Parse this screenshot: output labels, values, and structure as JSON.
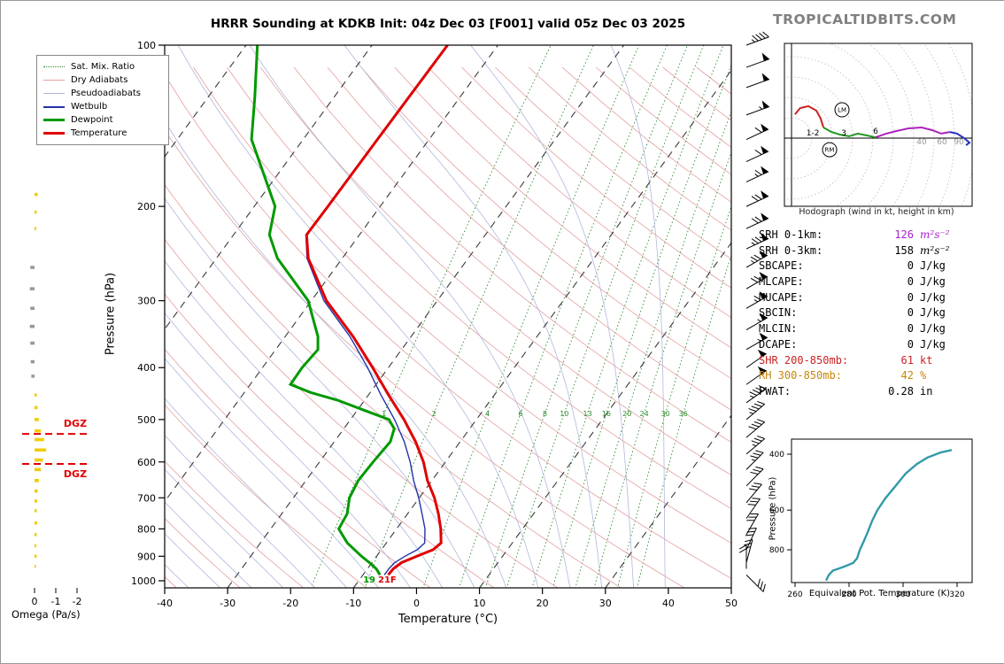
{
  "title": "HRRR Sounding at KDKB Init: 04z Dec 03 [F001] valid 05z Dec 03 2025",
  "branding": "TROPICALTIDBITS.COM",
  "hodograph_caption": "Hodograph (wind in kt, height in km)",
  "legend": {
    "items": [
      {
        "label": "Sat. Mix. Ratio",
        "color": "#2e8b2e",
        "style": "dotted",
        "width": 1
      },
      {
        "label": "Dry Adiabats",
        "color": "#e49f9f",
        "style": "solid",
        "width": 1
      },
      {
        "label": "Pseudoadiabats",
        "color": "#b0b8dc",
        "style": "solid",
        "width": 1
      },
      {
        "label": "Wetbulb",
        "color": "#2233aa",
        "style": "solid",
        "width": 2
      },
      {
        "label": "Dewpoint",
        "color": "#009900",
        "style": "solid",
        "width": 3
      },
      {
        "label": "Temperature",
        "color": "#e00000",
        "style": "solid",
        "width": 3
      }
    ]
  },
  "axes": {
    "pressure_label": "Pressure (hPa)",
    "pressure_ticks": [
      100,
      200,
      300,
      400,
      500,
      600,
      700,
      800,
      900,
      1000
    ],
    "temp_label": "Temperature (°C)",
    "temp_ticks": [
      -40,
      -30,
      -20,
      -10,
      0,
      10,
      20,
      30,
      40,
      50
    ],
    "omega_label": "Omega (Pa/s)",
    "omega_ticks": [
      0,
      -1,
      -2
    ]
  },
  "theta_e_labels": {
    "x": "Equivalent Pot. Temperature (K)",
    "y": "Pressure (hPa)"
  },
  "dgz": {
    "label": "DGZ",
    "top_p": 532,
    "bottom_p": 605
  },
  "surface": {
    "dewpoint_label": "19",
    "temp_label": "21F"
  },
  "stats": {
    "rows": [
      {
        "label": "SRH 0-1km:",
        "value": "126",
        "unit": "m²s⁻²",
        "lc": "#000000",
        "vc": "#aa22cc",
        "uc": "#aa22cc",
        "iu": true
      },
      {
        "label": "SRH 0-3km:",
        "value": "158",
        "unit": "m²s⁻²",
        "lc": "#000000",
        "vc": "#000000",
        "uc": "#000000",
        "iu": true
      },
      {
        "label": "SBCAPE:",
        "value": "0",
        "unit": "J/kg",
        "lc": "#000000",
        "vc": "#000000",
        "uc": "#000000",
        "iu": false
      },
      {
        "label": "MLCAPE:",
        "value": "0",
        "unit": "J/kg",
        "lc": "#000000",
        "vc": "#000000",
        "uc": "#000000",
        "iu": false
      },
      {
        "label": "MUCAPE:",
        "value": "0",
        "unit": "J/kg",
        "lc": "#000000",
        "vc": "#000000",
        "uc": "#000000",
        "iu": false
      },
      {
        "label": "SBCIN:",
        "value": "0",
        "unit": "J/kg",
        "lc": "#000000",
        "vc": "#000000",
        "uc": "#000000",
        "iu": false
      },
      {
        "label": "MLCIN:",
        "value": "0",
        "unit": "J/kg",
        "lc": "#000000",
        "vc": "#000000",
        "uc": "#000000",
        "iu": false
      },
      {
        "label": "DCAPE:",
        "value": "0",
        "unit": "J/kg",
        "lc": "#000000",
        "vc": "#000000",
        "uc": "#000000",
        "iu": false
      },
      {
        "label": "SHR 200-850mb:",
        "value": "61",
        "unit": "kt",
        "lc": "#cc2222",
        "vc": "#cc2222",
        "uc": "#cc2222",
        "iu": false
      },
      {
        "label": "RH 300-850mb:",
        "value": "42",
        "unit": "%",
        "lc": "#c8860a",
        "vc": "#c8860a",
        "uc": "#c8860a",
        "iu": false
      },
      {
        "label": "PWAT:",
        "value": "0.28",
        "unit": "in",
        "lc": "#000000",
        "vc": "#000000",
        "uc": "#000000",
        "iu": false
      }
    ]
  },
  "chart_data": {
    "skewt": {
      "type": "line",
      "title": "HRRR Sounding at KDKB",
      "xlabel": "Temperature (°C)",
      "ylabel": "Pressure (hPa)",
      "t_range": [
        -40,
        50
      ],
      "p_range": [
        100,
        1050
      ],
      "series": [
        {
          "name": "temperature",
          "color": "#e00000",
          "width": 3,
          "points": [
            [
              975,
              -6.0
            ],
            [
              950,
              -5.9
            ],
            [
              925,
              -5.3
            ],
            [
              900,
              -3.6
            ],
            [
              875,
              -1.8
            ],
            [
              850,
              -1.3
            ],
            [
              800,
              -3.0
            ],
            [
              750,
              -5.1
            ],
            [
              700,
              -7.6
            ],
            [
              650,
              -10.7
            ],
            [
              600,
              -13.5
            ],
            [
              550,
              -17.1
            ],
            [
              500,
              -21.5
            ],
            [
              450,
              -26.8
            ],
            [
              400,
              -32.5
            ],
            [
              350,
              -39.2
            ],
            [
              300,
              -47.6
            ],
            [
              250,
              -55.4
            ],
            [
              226,
              -58.4
            ],
            [
              200,
              -58.3
            ],
            [
              150,
              -58.2
            ],
            [
              100,
              -58.0
            ]
          ]
        },
        {
          "name": "dewpoint",
          "color": "#009900",
          "width": 3,
          "points": [
            [
              975,
              -7.3
            ],
            [
              950,
              -8.6
            ],
            [
              925,
              -10.4
            ],
            [
              900,
              -12.4
            ],
            [
              850,
              -16.2
            ],
            [
              800,
              -19.2
            ],
            [
              750,
              -19.6
            ],
            [
              700,
              -21.1
            ],
            [
              650,
              -21.7
            ],
            [
              600,
              -21.5
            ],
            [
              550,
              -21.1
            ],
            [
              520,
              -22.0
            ],
            [
              500,
              -23.9
            ],
            [
              480,
              -29.0
            ],
            [
              460,
              -34.3
            ],
            [
              445,
              -39.5
            ],
            [
              430,
              -43.6
            ],
            [
              400,
              -43.7
            ],
            [
              370,
              -43.3
            ],
            [
              350,
              -44.8
            ],
            [
              300,
              -50.5
            ],
            [
              250,
              -60.3
            ],
            [
              226,
              -64.3
            ],
            [
              200,
              -66.7
            ],
            [
              150,
              -78.2
            ],
            [
              125,
              -82.6
            ],
            [
              100,
              -88.2
            ]
          ]
        },
        {
          "name": "wetbulb",
          "color": "#2233aa",
          "width": 1.4,
          "points": [
            [
              975,
              -6.6
            ],
            [
              950,
              -6.6
            ],
            [
              925,
              -6.4
            ],
            [
              900,
              -5.5
            ],
            [
              875,
              -4.3
            ],
            [
              850,
              -3.9
            ],
            [
              800,
              -5.5
            ],
            [
              750,
              -7.7
            ],
            [
              700,
              -10.1
            ],
            [
              650,
              -12.9
            ],
            [
              600,
              -15.6
            ],
            [
              550,
              -18.9
            ],
            [
              500,
              -23.0
            ],
            [
              450,
              -28.0
            ],
            [
              400,
              -33.3
            ],
            [
              350,
              -39.7
            ],
            [
              300,
              -48.0
            ],
            [
              250,
              -55.6
            ],
            [
              226,
              -58.5
            ],
            [
              200,
              -58.4
            ],
            [
              150,
              -58.3
            ],
            [
              100,
              -58.1
            ]
          ]
        }
      ],
      "background": {
        "isotherms_c": [
          -110,
          -90,
          -70,
          -50,
          -30,
          -10,
          10,
          30,
          50
        ],
        "dry_adiabats_k_range": [
          233,
          503,
          10
        ],
        "pseudoadiabats_c": [
          -55,
          -50,
          -45,
          -40,
          -35,
          -30,
          -25,
          -20,
          -15,
          -10,
          -5,
          0,
          5,
          10,
          15,
          20,
          25,
          30,
          35,
          40
        ],
        "mixing_ratios_gkg": [
          1,
          2,
          4,
          6,
          8,
          10,
          13,
          16,
          20,
          24,
          30,
          36
        ]
      }
    },
    "wind_barbs": {
      "units": "kt",
      "column_x": 842,
      "levels": [
        [
          975,
          30,
          315
        ],
        [
          950,
          20,
          180
        ],
        [
          925,
          25,
          195
        ],
        [
          875,
          30,
          205
        ],
        [
          820,
          30,
          210
        ],
        [
          765,
          30,
          215
        ],
        [
          715,
          30,
          220
        ],
        [
          665,
          30,
          225
        ],
        [
          620,
          35,
          225
        ],
        [
          580,
          35,
          230
        ],
        [
          540,
          40,
          230
        ],
        [
          500,
          45,
          230
        ],
        [
          465,
          45,
          235
        ],
        [
          430,
          50,
          235
        ],
        [
          400,
          50,
          235
        ],
        [
          370,
          55,
          240
        ],
        [
          340,
          55,
          240
        ],
        [
          310,
          65,
          240
        ],
        [
          285,
          70,
          240
        ],
        [
          260,
          75,
          240
        ],
        [
          240,
          75,
          245
        ],
        [
          220,
          70,
          245
        ],
        [
          200,
          70,
          245
        ],
        [
          180,
          65,
          245
        ],
        [
          165,
          60,
          245
        ],
        [
          150,
          60,
          245
        ],
        [
          135,
          55,
          250
        ],
        [
          120,
          50,
          250
        ],
        [
          110,
          50,
          250
        ],
        [
          100,
          45,
          250
        ]
      ]
    },
    "omega": {
      "type": "bar",
      "units": "Pa/s",
      "bars": [
        [
          190,
          -0.15
        ],
        [
          205,
          -0.1
        ],
        [
          220,
          -0.08
        ],
        [
          260,
          0.2
        ],
        [
          285,
          0.22
        ],
        [
          310,
          0.2
        ],
        [
          335,
          0.22
        ],
        [
          360,
          0.2
        ],
        [
          390,
          0.18
        ],
        [
          415,
          0.15
        ],
        [
          450,
          -0.1
        ],
        [
          475,
          -0.15
        ],
        [
          500,
          -0.2
        ],
        [
          525,
          -0.3
        ],
        [
          545,
          -0.45
        ],
        [
          570,
          -0.55
        ],
        [
          595,
          -0.4
        ],
        [
          620,
          -0.3
        ],
        [
          650,
          -0.2
        ],
        [
          680,
          -0.15
        ],
        [
          710,
          -0.12
        ],
        [
          740,
          -0.1
        ],
        [
          780,
          -0.12
        ],
        [
          820,
          -0.1
        ],
        [
          860,
          -0.08
        ],
        [
          900,
          -0.1
        ],
        [
          940,
          -0.06
        ]
      ]
    },
    "hodograph": {
      "type": "line",
      "units": "kt",
      "ring_step_kt": 10,
      "ring_labels": [
        {
          "text": "40",
          "u": 63.9,
          "v": -3
        },
        {
          "text": "60",
          "u": 73.9,
          "v": -3
        },
        {
          "text": "90",
          "u": 82.2,
          "v": -3
        }
      ],
      "segments": [
        {
          "name": "0-1 km",
          "color": "#cc2222",
          "points": [
            [
              1.7,
              11.7
            ],
            [
              4.3,
              14.8
            ],
            [
              8.3,
              15.7
            ],
            [
              12.2,
              13.5
            ],
            [
              14.3,
              9.6
            ],
            [
              15.7,
              5.2
            ]
          ]
        },
        {
          "name": "1-6 km",
          "color": "#229922",
          "points": [
            [
              15.7,
              5.2
            ],
            [
              19.6,
              3.0
            ],
            [
              23.9,
              1.7
            ],
            [
              28.3,
              0.9
            ],
            [
              32.6,
              2.2
            ],
            [
              37.0,
              1.3
            ],
            [
              41.3,
              0.4
            ]
          ]
        },
        {
          "name": "6-9 km",
          "color": "#aa22bb",
          "points": [
            [
              41.3,
              0.4
            ],
            [
              46.5,
              2.2
            ],
            [
              51.7,
              3.5
            ],
            [
              57.4,
              4.8
            ],
            [
              63.9,
              5.2
            ],
            [
              69.1,
              3.9
            ],
            [
              73.5,
              2.2
            ],
            [
              77.8,
              3.0
            ]
          ]
        },
        {
          "name": "9+ km",
          "color": "#2233bb",
          "points": [
            [
              77.8,
              3.0
            ],
            [
              81.3,
              2.2
            ],
            [
              84.8,
              0.0
            ],
            [
              87.4,
              -2.2
            ],
            [
              85.7,
              -3.5
            ]
          ]
        }
      ],
      "height_marks": [
        {
          "text": "1-2",
          "u": 10.5,
          "v": 1.3
        },
        {
          "text": "3",
          "u": 25.7,
          "v": 1.3
        },
        {
          "text": "6",
          "u": 41.3,
          "v": 2.2
        }
      ],
      "storm_motion": [
        {
          "text": "LM",
          "u": 24.8,
          "v": 13.9
        },
        {
          "text": "RM",
          "u": 18.7,
          "v": -5.7
        }
      ]
    },
    "theta_e": {
      "type": "line",
      "color": "#3399aa",
      "xlabel": "Equivalent Pot. Temperature (K)",
      "ylabel": "Pressure (hPa)",
      "x_ticks": [
        260,
        280,
        300,
        320
      ],
      "y_ticks": [
        400,
        600,
        800
      ],
      "points": [
        [
          1000,
          271.5
        ],
        [
          960,
          272.5
        ],
        [
          930,
          274
        ],
        [
          905,
          278
        ],
        [
          880,
          281.5
        ],
        [
          850,
          283
        ],
        [
          800,
          284
        ],
        [
          750,
          285.5
        ],
        [
          700,
          287
        ],
        [
          650,
          288.5
        ],
        [
          600,
          290.5
        ],
        [
          550,
          293.5
        ],
        [
          500,
          297.5
        ],
        [
          460,
          301
        ],
        [
          430,
          305
        ],
        [
          410,
          309
        ],
        [
          395,
          314
        ],
        [
          388,
          318
        ]
      ]
    }
  }
}
